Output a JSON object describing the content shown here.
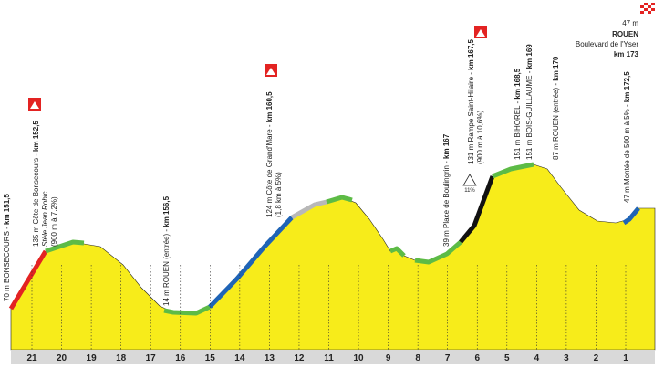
{
  "profile": {
    "km_markers": [
      "21",
      "20",
      "19",
      "18",
      "17",
      "16",
      "15",
      "14",
      "13",
      "12",
      "11",
      "10",
      "9",
      "8",
      "7",
      "6",
      "5",
      "4",
      "3",
      "2",
      "1"
    ],
    "annotations": [
      {
        "label": "70 m BONSECOURS - ",
        "km": "km 151,5"
      },
      {
        "label": "135 m Côte de Bonsecours - ",
        "km": "km 152,5",
        "note": "Stèle Jean Robic",
        "detail": "(900 m à 7,2%)"
      },
      {
        "label": "14 m ROUEN (entrée) - ",
        "km": "km 156,5"
      },
      {
        "label": "124 m Côte de Grand'Mare - ",
        "km": "km 160,5",
        "detail": "(1,8 km à 5%)"
      },
      {
        "label": "39 m Place de Boulingrin - ",
        "km": "km 167"
      },
      {
        "label": "131 m Rampe Saint-Hilaire - ",
        "km": "km 167,5",
        "detail": "(900 m à 10,6%)"
      },
      {
        "label": "151 m BIHOREL - ",
        "km": "km 168,5"
      },
      {
        "label": "151 m BOIS-GUILLAUME - ",
        "km": "km 169"
      },
      {
        "label": "87 m ROUEN (entrée) - ",
        "km": "km 170"
      },
      {
        "label": "47 m Montée de 500 m à 5% - ",
        "km": "km 172,5"
      }
    ],
    "gradient_sign": "11%",
    "finish": {
      "altitude": "47 m",
      "town": "ROUEN",
      "place": "Boulevard de l'Yser",
      "km": "km 173"
    }
  }
}
